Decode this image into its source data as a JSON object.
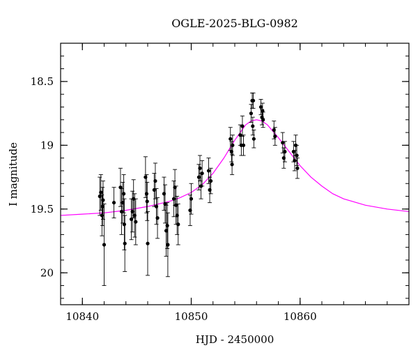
{
  "chart_data": {
    "type": "scatter",
    "title": "OGLE-2025-BLG-0982",
    "xlabel": "HJD - 2450000",
    "ylabel": "I magnitude",
    "xlim": [
      10838,
      10870
    ],
    "ylim": [
      20.25,
      18.2
    ],
    "y_inverted": true,
    "xticks_major": [
      10840,
      10850,
      10860
    ],
    "xticks_minor_step": 2,
    "yticks_major": [
      18.5,
      19,
      19.5,
      20
    ],
    "ytick_labels": [
      "18.5",
      "19",
      "19.5",
      "20"
    ],
    "yticks_minor_step": 0.1,
    "grid": false,
    "legend": "none",
    "colors": {
      "data": "#000000",
      "model": "#ff00ff",
      "errorbar": "#000000"
    },
    "series": [
      {
        "kind": "data-with-errorbars",
        "points": [
          {
            "x": 10841.6,
            "y": 19.4,
            "err": 0.15
          },
          {
            "x": 10841.7,
            "y": 19.37,
            "err": 0.14
          },
          {
            "x": 10841.8,
            "y": 19.55,
            "err": 0.16
          },
          {
            "x": 10841.85,
            "y": 19.48,
            "err": 0.15
          },
          {
            "x": 10841.9,
            "y": 19.43,
            "err": 0.15
          },
          {
            "x": 10842.0,
            "y": 19.78,
            "err": 0.32
          },
          {
            "x": 10842.9,
            "y": 19.45,
            "err": 0.12
          },
          {
            "x": 10843.5,
            "y": 19.33,
            "err": 0.15
          },
          {
            "x": 10843.6,
            "y": 19.52,
            "err": 0.18
          },
          {
            "x": 10843.7,
            "y": 19.45,
            "err": 0.16
          },
          {
            "x": 10843.8,
            "y": 19.38,
            "err": 0.15
          },
          {
            "x": 10843.85,
            "y": 19.62,
            "err": 0.2
          },
          {
            "x": 10843.9,
            "y": 19.77,
            "err": 0.22
          },
          {
            "x": 10844.5,
            "y": 19.58,
            "err": 0.16
          },
          {
            "x": 10844.6,
            "y": 19.52,
            "err": 0.16
          },
          {
            "x": 10844.7,
            "y": 19.42,
            "err": 0.15
          },
          {
            "x": 10844.8,
            "y": 19.55,
            "err": 0.17
          },
          {
            "x": 10844.9,
            "y": 19.6,
            "err": 0.18
          },
          {
            "x": 10845.8,
            "y": 19.25,
            "err": 0.16
          },
          {
            "x": 10845.9,
            "y": 19.38,
            "err": 0.15
          },
          {
            "x": 10845.95,
            "y": 19.44,
            "err": 0.15
          },
          {
            "x": 10846.0,
            "y": 19.77,
            "err": 0.25
          },
          {
            "x": 10846.6,
            "y": 19.35,
            "err": 0.13
          },
          {
            "x": 10846.7,
            "y": 19.28,
            "err": 0.14
          },
          {
            "x": 10846.8,
            "y": 19.48,
            "err": 0.14
          },
          {
            "x": 10846.9,
            "y": 19.57,
            "err": 0.16
          },
          {
            "x": 10847.5,
            "y": 19.38,
            "err": 0.13
          },
          {
            "x": 10847.6,
            "y": 19.46,
            "err": 0.15
          },
          {
            "x": 10847.7,
            "y": 19.67,
            "err": 0.2
          },
          {
            "x": 10847.8,
            "y": 19.63,
            "err": 0.18
          },
          {
            "x": 10847.85,
            "y": 19.78,
            "err": 0.25
          },
          {
            "x": 10848.4,
            "y": 19.42,
            "err": 0.14
          },
          {
            "x": 10848.5,
            "y": 19.33,
            "err": 0.14
          },
          {
            "x": 10848.6,
            "y": 19.47,
            "err": 0.15
          },
          {
            "x": 10848.7,
            "y": 19.55,
            "err": 0.15
          },
          {
            "x": 10848.8,
            "y": 19.62,
            "err": 0.16
          },
          {
            "x": 10849.9,
            "y": 19.51,
            "err": 0.12
          },
          {
            "x": 10850.0,
            "y": 19.42,
            "err": 0.12
          },
          {
            "x": 10850.7,
            "y": 19.25,
            "err": 0.1
          },
          {
            "x": 10850.8,
            "y": 19.18,
            "err": 0.1
          },
          {
            "x": 10850.9,
            "y": 19.32,
            "err": 0.1
          },
          {
            "x": 10851.0,
            "y": 19.22,
            "err": 0.1
          },
          {
            "x": 10851.6,
            "y": 19.2,
            "err": 0.1
          },
          {
            "x": 10851.7,
            "y": 19.35,
            "err": 0.1
          },
          {
            "x": 10851.8,
            "y": 19.28,
            "err": 0.1
          },
          {
            "x": 10853.6,
            "y": 18.95,
            "err": 0.09
          },
          {
            "x": 10853.7,
            "y": 19.05,
            "err": 0.08
          },
          {
            "x": 10853.75,
            "y": 19.15,
            "err": 0.08
          },
          {
            "x": 10853.8,
            "y": 19.0,
            "err": 0.08
          },
          {
            "x": 10854.5,
            "y": 18.92,
            "err": 0.08
          },
          {
            "x": 10854.6,
            "y": 19.0,
            "err": 0.08
          },
          {
            "x": 10854.7,
            "y": 18.85,
            "err": 0.08
          },
          {
            "x": 10854.8,
            "y": 19.0,
            "err": 0.08
          },
          {
            "x": 10855.5,
            "y": 18.75,
            "err": 0.07
          },
          {
            "x": 10855.6,
            "y": 18.65,
            "err": 0.06
          },
          {
            "x": 10855.65,
            "y": 18.85,
            "err": 0.07
          },
          {
            "x": 10855.7,
            "y": 18.65,
            "err": 0.06
          },
          {
            "x": 10855.75,
            "y": 18.95,
            "err": 0.07
          },
          {
            "x": 10856.4,
            "y": 18.7,
            "err": 0.06
          },
          {
            "x": 10856.5,
            "y": 18.78,
            "err": 0.06
          },
          {
            "x": 10856.55,
            "y": 18.73,
            "err": 0.06
          },
          {
            "x": 10856.6,
            "y": 18.8,
            "err": 0.06
          },
          {
            "x": 10857.6,
            "y": 18.88,
            "err": 0.07
          },
          {
            "x": 10857.7,
            "y": 18.93,
            "err": 0.07
          },
          {
            "x": 10858.4,
            "y": 18.98,
            "err": 0.08
          },
          {
            "x": 10858.5,
            "y": 19.1,
            "err": 0.08
          },
          {
            "x": 10858.6,
            "y": 19.05,
            "err": 0.08
          },
          {
            "x": 10859.4,
            "y": 19.05,
            "err": 0.08
          },
          {
            "x": 10859.5,
            "y": 19.12,
            "err": 0.08
          },
          {
            "x": 10859.6,
            "y": 19.0,
            "err": 0.08
          },
          {
            "x": 10859.7,
            "y": 19.08,
            "err": 0.08
          },
          {
            "x": 10859.75,
            "y": 19.18,
            "err": 0.08
          }
        ]
      },
      {
        "kind": "model-curve",
        "x": [
          10838,
          10840,
          10842,
          10844,
          10846,
          10848,
          10849,
          10850,
          10851,
          10852,
          10853,
          10854,
          10855,
          10855.5,
          10856,
          10856.5,
          10857,
          10858,
          10859,
          10860,
          10861,
          10862,
          10863,
          10864,
          10866,
          10868,
          10870
        ],
        "y": [
          19.55,
          19.54,
          19.53,
          19.51,
          19.48,
          19.44,
          19.41,
          19.37,
          19.31,
          19.22,
          19.1,
          18.96,
          18.84,
          18.81,
          18.8,
          18.81,
          18.84,
          18.94,
          19.05,
          19.16,
          19.25,
          19.32,
          19.38,
          19.42,
          19.47,
          19.5,
          19.52
        ]
      }
    ]
  }
}
